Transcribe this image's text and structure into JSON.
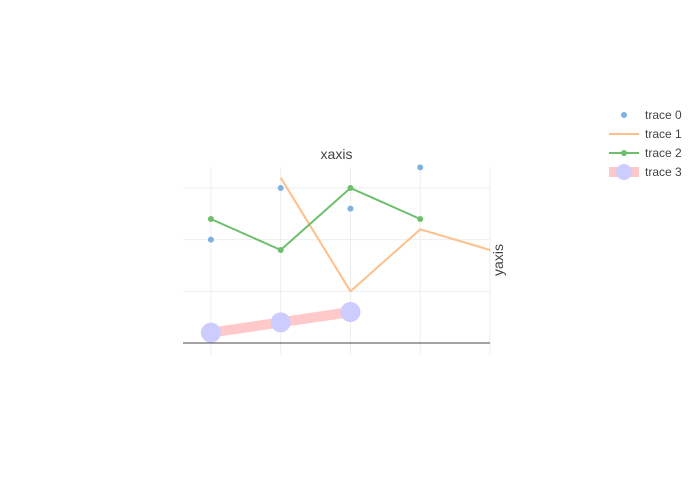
{
  "chart_data": {
    "type": "line",
    "xlabel": "xaxis",
    "ylabel": "yaxis",
    "x_axis_position": "top",
    "y_axis_position": "right",
    "tick_labels_shown": false,
    "grid": true,
    "legend_position": "right",
    "xlim": [
      -0.4,
      4.0
    ],
    "ylim": [
      0,
      9
    ],
    "series": [
      {
        "name": "trace 0",
        "mode": "markers",
        "color": "#7fb1e0",
        "x": [
          0,
          1,
          2,
          3
        ],
        "y": [
          5,
          7.5,
          6.5,
          8.5
        ]
      },
      {
        "name": "trace 1",
        "mode": "lines",
        "color": "#ffbf8a",
        "x": [
          1,
          2,
          3,
          4
        ],
        "y": [
          8,
          2.5,
          5.5,
          4.5
        ]
      },
      {
        "name": "trace 2",
        "mode": "lines+markers",
        "color": "#6cc06c",
        "x": [
          0,
          1,
          2,
          3
        ],
        "y": [
          6,
          4.5,
          7.5,
          6
        ]
      },
      {
        "name": "trace 3",
        "mode": "lines+markers",
        "color": "#ffc9c9",
        "marker_color": "#ccccff",
        "x": [
          0,
          1,
          2
        ],
        "y": [
          0.5,
          1,
          1.5
        ]
      }
    ]
  }
}
